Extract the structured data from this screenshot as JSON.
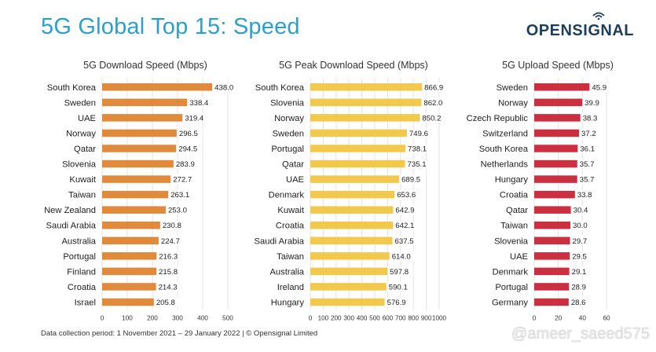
{
  "header": {
    "title": "5G Global Top 15: Speed",
    "brand": "OPENSIGNAL"
  },
  "colors": {
    "title": "#2aa0d2",
    "download": "#e08a3c",
    "peak": "#f2c94c",
    "upload": "#cc2f3f",
    "grid": "#e3e3e3"
  },
  "chart_data": [
    {
      "type": "bar",
      "orientation": "horizontal",
      "title": "5G Download Speed (Mbps)",
      "categories": [
        "South Korea",
        "Sweden",
        "UAE",
        "Norway",
        "Qatar",
        "Slovenia",
        "Kuwait",
        "Taiwan",
        "New Zealand",
        "Saudi Arabia",
        "Australia",
        "Portugal",
        "Finland",
        "Croatia",
        "Israel"
      ],
      "values": [
        438.0,
        338.4,
        319.4,
        296.5,
        294.5,
        283.9,
        272.7,
        263.1,
        253.0,
        230.8,
        224.7,
        216.3,
        215.8,
        214.3,
        205.8
      ],
      "value_labels": [
        "438.0",
        "338.4",
        "319.4",
        "296.5",
        "294.5",
        "283.9",
        "272.7",
        "263.1",
        "253.0",
        "230.8",
        "224.7",
        "216.3",
        "215.8",
        "214.3",
        "205.8"
      ],
      "xlim": [
        0,
        500
      ],
      "ticks": [
        "0",
        "100",
        "200",
        "300",
        "400",
        "500"
      ],
      "color": "#e08a3c",
      "grid": true
    },
    {
      "type": "bar",
      "orientation": "horizontal",
      "title": "5G Peak Download Speed (Mbps)",
      "categories": [
        "South Korea",
        "Slovenia",
        "Norway",
        "Sweden",
        "Portugal",
        "Qatar",
        "UAE",
        "Denmark",
        "Kuwait",
        "Croatia",
        "Saudi Arabia",
        "Taiwan",
        "Australia",
        "Ireland",
        "Hungary"
      ],
      "values": [
        866.9,
        862.0,
        850.2,
        749.6,
        738.1,
        735.1,
        689.5,
        653.6,
        642.9,
        642.1,
        637.5,
        614.0,
        597.8,
        590.1,
        576.9
      ],
      "value_labels": [
        "866.9",
        "862.0",
        "850.2",
        "749.6",
        "738.1",
        "735.1",
        "689.5",
        "653.6",
        "642.9",
        "642.1",
        "637.5",
        "614.0",
        "597.8",
        "590.1",
        "576.9"
      ],
      "xlim": [
        0,
        1000
      ],
      "ticks": [
        "0",
        "100",
        "200",
        "300",
        "400",
        "500",
        "600",
        "700",
        "800",
        "900",
        "1000"
      ],
      "color": "#f2c94c",
      "grid": true
    },
    {
      "type": "bar",
      "orientation": "horizontal",
      "title": "5G Upload Speed (Mbps)",
      "categories": [
        "Sweden",
        "Norway",
        "Czech Republic",
        "Switzerland",
        "South Korea",
        "Netherlands",
        "Hungary",
        "Croatia",
        "Qatar",
        "Taiwan",
        "Slovenia",
        "UAE",
        "Denmark",
        "Portugal",
        "Germany"
      ],
      "values": [
        45.9,
        39.9,
        38.3,
        37.2,
        36.1,
        35.7,
        35.7,
        33.8,
        30.4,
        30.0,
        29.7,
        29.5,
        29.1,
        28.9,
        28.6
      ],
      "value_labels": [
        "45.9",
        "39.9",
        "38.3",
        "37.2",
        "36.1",
        "35.7",
        "35.7",
        "33.8",
        "30.4",
        "30.0",
        "29.7",
        "29.5",
        "29.1",
        "28.9",
        "28.6"
      ],
      "xlim": [
        0,
        60
      ],
      "ticks": [
        "0",
        "20",
        "40",
        "60"
      ],
      "color": "#cc2f3f",
      "grid": true
    }
  ],
  "footer": {
    "note": "Data collection period: 1 November 2021 – 29 January 2022 |  © Opensignal Limited",
    "watermark": "@ameer_saeed575"
  }
}
